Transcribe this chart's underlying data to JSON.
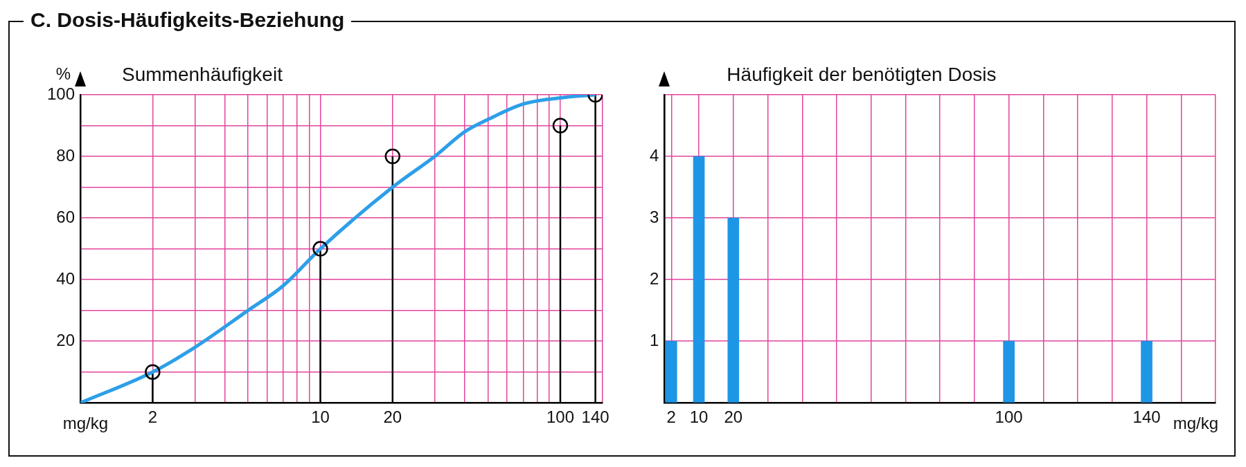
{
  "chart_data": [
    {
      "type": "line",
      "title": "C. Dosis-Häufigkeits-Beziehung",
      "subtitle": "Summenhäufigkeit",
      "xlabel": "mg/kg",
      "ylabel": "%",
      "log": "x",
      "grid": true,
      "legend": false,
      "series": [
        {
          "type": "line",
          "color": "#2d9fe8",
          "x": [
            1,
            2,
            3,
            5,
            7,
            10,
            20,
            30,
            40,
            50,
            70,
            100,
            140
          ],
          "values": [
            0,
            10,
            18,
            30,
            38,
            50,
            70,
            80,
            88,
            92,
            97,
            99,
            100
          ]
        },
        {
          "type": "lollipop",
          "color": "#000000",
          "marker": "circle",
          "x": [
            2,
            10,
            20,
            100,
            140
          ],
          "values": [
            10,
            50,
            80,
            90,
            100
          ]
        }
      ],
      "xlim": [
        1,
        150
      ],
      "xticks": [
        {
          "value": 1,
          "label": null
        },
        2,
        {
          "value": 3,
          "label": null
        },
        {
          "value": 4,
          "label": null
        },
        {
          "value": 5,
          "label": null
        },
        {
          "value": 6,
          "label": null
        },
        {
          "value": 7,
          "label": null
        },
        {
          "value": 8,
          "label": null
        },
        {
          "value": 9,
          "label": null
        },
        10,
        20,
        {
          "value": 30,
          "label": null
        },
        {
          "value": 40,
          "label": null
        },
        {
          "value": 50,
          "label": null
        },
        {
          "value": 60,
          "label": null
        },
        {
          "value": 70,
          "label": null
        },
        {
          "value": 80,
          "label": null
        },
        {
          "value": 90,
          "label": null
        },
        100,
        140,
        {
          "value": 150,
          "label": null
        }
      ],
      "ylim": [
        0,
        100
      ],
      "yticks": [
        {
          "value": 0,
          "label": null
        },
        {
          "value": 10,
          "label": null
        },
        20,
        {
          "value": 30,
          "label": null
        },
        40,
        {
          "value": 50,
          "label": null
        },
        60,
        {
          "value": 70,
          "label": null
        },
        80,
        {
          "value": 90,
          "label": null
        },
        100
      ]
    },
    {
      "type": "bar",
      "title": "Häufigkeit der benötigten Dosis",
      "xlabel": "mg/kg",
      "grid": true,
      "legend": false,
      "x": [
        2,
        10,
        20,
        100,
        140
      ],
      "values": [
        1,
        4,
        3,
        1,
        1
      ],
      "color": "#1e96e6",
      "xlim": [
        0,
        160
      ],
      "xticks": [
        {
          "value": 0,
          "label": null
        },
        2,
        10,
        20,
        {
          "value": 30,
          "label": null
        },
        {
          "value": 40,
          "label": null
        },
        {
          "value": 50,
          "label": null
        },
        {
          "value": 60,
          "label": null
        },
        {
          "value": 70,
          "label": null
        },
        {
          "value": 80,
          "label": null
        },
        {
          "value": 90,
          "label": null
        },
        100,
        {
          "value": 110,
          "label": null
        },
        {
          "value": 120,
          "label": null
        },
        {
          "value": 130,
          "label": null
        },
        140,
        {
          "value": 150,
          "label": null
        },
        {
          "value": 160,
          "label": null
        }
      ],
      "ylim": [
        0,
        5
      ],
      "yticks": [
        {
          "value": 0,
          "label": null
        },
        1,
        2,
        3,
        4,
        {
          "value": 5,
          "label": null
        }
      ]
    }
  ]
}
